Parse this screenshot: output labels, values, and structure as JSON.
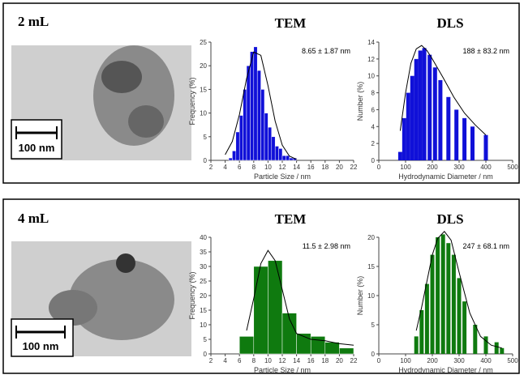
{
  "panels": [
    {
      "label": "2 mL",
      "tem_heading": "TEM",
      "dls_heading": "DLS",
      "scale_bar": "100 nm"
    },
    {
      "label": "4 mL",
      "tem_heading": "TEM",
      "dls_heading": "DLS",
      "scale_bar": "100 nm"
    }
  ],
  "chart_data": [
    {
      "type": "histogram",
      "color": "#1010d8",
      "annotation": "8.65 ± 1.87 nm",
      "x_label": "Particle Size / nm",
      "y_label": "Frequency (%)",
      "bins": [
        4.5,
        5,
        5.5,
        6,
        6.5,
        7,
        7.5,
        8,
        8.5,
        9,
        9.5,
        10,
        10.5,
        11,
        11.5,
        12,
        12.5,
        13,
        13.5,
        14
      ],
      "values": [
        0.5,
        2,
        6,
        9.5,
        15,
        20,
        23,
        24,
        19,
        15,
        10,
        7,
        5,
        3,
        2.5,
        1,
        1,
        0.5,
        0.5
      ],
      "fit_x": [
        4,
        5,
        6,
        7,
        8,
        9,
        10,
        11,
        12,
        13,
        14
      ],
      "fit_y": [
        1.2,
        4,
        9.7,
        17.3,
        22.9,
        22.2,
        15.8,
        8.3,
        3.2,
        0.9,
        0.2
      ],
      "xlim": [
        2,
        22
      ],
      "xticks": [
        2,
        4,
        6,
        8,
        10,
        12,
        14,
        16,
        18,
        20,
        22
      ],
      "ylim": [
        0,
        25
      ],
      "yticks": [
        0,
        5,
        10,
        15,
        20,
        25
      ]
    },
    {
      "type": "bar",
      "color": "#1010d8",
      "annotation": "188 ± 83.2 nm",
      "x_label": "Hydrodynamic Diameter / nm",
      "y_label": "Number (%)",
      "x": [
        80,
        95,
        110,
        125,
        140,
        155,
        170,
        190,
        210,
        230,
        260,
        290,
        320,
        350,
        400
      ],
      "values": [
        1,
        5,
        8,
        10,
        12,
        13,
        13.3,
        12.5,
        11,
        9.5,
        7.5,
        6,
        5,
        4,
        3
      ],
      "fit_x": [
        80,
        100,
        120,
        140,
        160,
        180,
        200,
        240,
        280,
        320,
        360,
        400
      ],
      "fit_y": [
        3.5,
        8,
        11.5,
        13.2,
        13.6,
        13,
        12,
        9.8,
        7.5,
        5.6,
        4.2,
        3
      ],
      "xlim": [
        0,
        500
      ],
      "xticks": [
        0,
        100,
        200,
        300,
        400,
        500
      ],
      "ylim": [
        0,
        14
      ],
      "yticks": [
        0,
        2,
        4,
        6,
        8,
        10,
        12,
        14
      ]
    },
    {
      "type": "histogram",
      "color": "#0f7a0f",
      "annotation": "11.5 ± 2.98 nm",
      "x_label": "Particle Size / nm",
      "y_label": "Frequency (%)",
      "bins": [
        6,
        8,
        10,
        12,
        14,
        16,
        18,
        20,
        22
      ],
      "values": [
        6,
        30,
        32,
        14,
        7,
        6,
        4,
        2
      ],
      "fit_x": [
        7,
        8,
        9,
        10,
        11,
        12,
        13,
        14,
        16,
        18,
        20,
        22
      ],
      "fit_y": [
        8,
        19,
        31,
        35.5,
        32,
        22,
        12,
        7,
        5,
        4.5,
        3.5,
        3
      ],
      "xlim": [
        2,
        22
      ],
      "xticks": [
        2,
        4,
        6,
        8,
        10,
        12,
        14,
        16,
        18,
        20,
        22
      ],
      "ylim": [
        0,
        40
      ],
      "yticks": [
        0,
        5,
        10,
        15,
        20,
        25,
        30,
        35,
        40
      ]
    },
    {
      "type": "bar",
      "color": "#0f7a0f",
      "annotation": "247 ± 68.1 nm",
      "x_label": "Hydrodynamic Diameter / nm",
      "y_label": "Number (%)",
      "x": [
        140,
        160,
        180,
        200,
        220,
        240,
        260,
        280,
        300,
        320,
        360,
        400,
        440,
        460
      ],
      "values": [
        3,
        7.5,
        12,
        17,
        20,
        20.5,
        19,
        17,
        13,
        9,
        5,
        3,
        2,
        1
      ],
      "fit_x": [
        140,
        160,
        180,
        200,
        220,
        245,
        270,
        300,
        340,
        380,
        420,
        460
      ],
      "fit_y": [
        4,
        8,
        12.5,
        17,
        19.8,
        21,
        19.5,
        14,
        7,
        3,
        1.5,
        1
      ],
      "xlim": [
        0,
        500
      ],
      "xticks": [
        0,
        100,
        200,
        300,
        400,
        500
      ],
      "ylim": [
        0,
        20
      ],
      "yticks": [
        0,
        5,
        10,
        15,
        20
      ]
    }
  ]
}
